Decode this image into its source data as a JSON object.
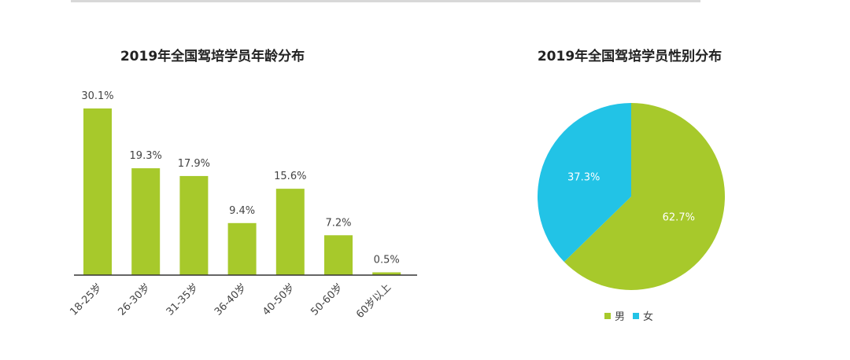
{
  "colors": {
    "green": "#a7c92b",
    "blue": "#22c3e6",
    "axis": "#333333",
    "label": "#444444"
  },
  "chart_data": [
    {
      "type": "bar",
      "title": "2019年全国驾培学员年龄分布",
      "categories": [
        "18-25岁",
        "26-30岁",
        "31-35岁",
        "36-40岁",
        "40-50岁",
        "50-60岁",
        "60岁以上"
      ],
      "values": [
        30.1,
        19.3,
        17.9,
        9.4,
        15.6,
        7.2,
        0.5
      ],
      "value_labels": [
        "30.1%",
        "19.3%",
        "17.9%",
        "9.4%",
        "15.6%",
        "7.2%",
        "0.5%"
      ],
      "ylim": [
        0,
        30.1
      ],
      "grid": false
    },
    {
      "type": "pie",
      "title": "2019年全国驾培学员性别分布",
      "labels": [
        "男",
        "女"
      ],
      "values": [
        62.7,
        37.3
      ],
      "value_labels": [
        "62.7%",
        "37.3%"
      ],
      "colors": [
        "#a7c92b",
        "#22c3e6"
      ],
      "legend": "bottom"
    }
  ]
}
